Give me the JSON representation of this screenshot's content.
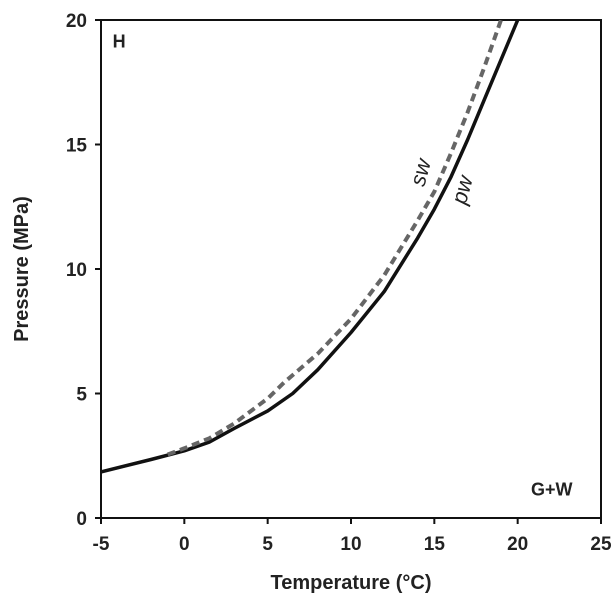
{
  "chart_data": {
    "type": "line",
    "xlabel": "Temperature (°C)",
    "ylabel": "Pressure (MPa)",
    "xlim": [
      -5,
      25
    ],
    "ylim": [
      0,
      20
    ],
    "xticks": [
      "-5",
      "0",
      "5",
      "10",
      "15",
      "20",
      "25"
    ],
    "yticks": [
      "0",
      "5",
      "10",
      "15",
      "20"
    ],
    "grid": false,
    "series": [
      {
        "name": "pw",
        "style": "solid",
        "color": "#111111",
        "points": [
          [
            -5,
            1.85
          ],
          [
            -2,
            2.35
          ],
          [
            0,
            2.7
          ],
          [
            1.5,
            3.05
          ],
          [
            3,
            3.6
          ],
          [
            5,
            4.3
          ],
          [
            6.5,
            5.0
          ],
          [
            8,
            5.95
          ],
          [
            10,
            7.45
          ],
          [
            12,
            9.1
          ],
          [
            14,
            11.25
          ],
          [
            15,
            12.4
          ],
          [
            16,
            13.7
          ],
          [
            17,
            15.2
          ],
          [
            18,
            16.8
          ],
          [
            19,
            18.4
          ],
          [
            20,
            20.0
          ]
        ]
      },
      {
        "name": "sw",
        "style": "dashed",
        "color": "#666666",
        "points": [
          [
            -1,
            2.55
          ],
          [
            0,
            2.8
          ],
          [
            1.5,
            3.2
          ],
          [
            3,
            3.8
          ],
          [
            5,
            4.8
          ],
          [
            6,
            5.45
          ],
          [
            8,
            6.6
          ],
          [
            10,
            8.0
          ],
          [
            12,
            9.75
          ],
          [
            14,
            11.95
          ],
          [
            15,
            13.1
          ],
          [
            16,
            14.65
          ],
          [
            17,
            16.3
          ],
          [
            18,
            18.1
          ],
          [
            19,
            20.0
          ]
        ]
      }
    ],
    "annotations": [
      {
        "text": "H",
        "x": -4.3,
        "y": 18.9
      },
      {
        "text": "G+W",
        "x": 20.8,
        "y": 0.9
      },
      {
        "text": "sw",
        "x": 14.6,
        "y": 13.8,
        "rotation": -75
      },
      {
        "text": "pw",
        "x": 17.1,
        "y": 13.1,
        "rotation": -75
      }
    ]
  }
}
